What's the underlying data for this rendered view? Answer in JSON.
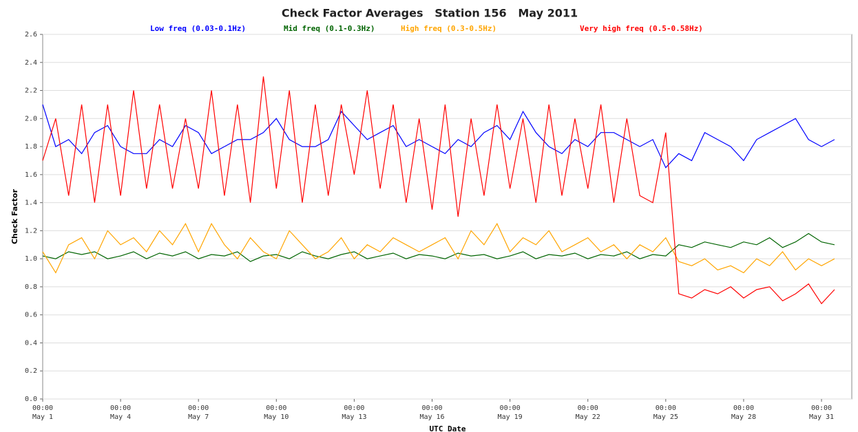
{
  "chart_data": {
    "type": "line",
    "title": "Check Factor Averages   Station 156   May 2011",
    "xlabel": "UTC Date",
    "ylabel": "Check Factor",
    "x": [
      "May 1 00:00",
      "May 1 12:00",
      "May 2 00:00",
      "May 2 12:00",
      "May 3 00:00",
      "May 3 12:00",
      "May 4 00:00",
      "May 4 12:00",
      "May 5 00:00",
      "May 5 12:00",
      "May 6 00:00",
      "May 6 12:00",
      "May 7 00:00",
      "May 7 12:00",
      "May 8 00:00",
      "May 8 12:00",
      "May 9 00:00",
      "May 9 12:00",
      "May 10 00:00",
      "May 10 12:00",
      "May 11 00:00",
      "May 11 12:00",
      "May 12 00:00",
      "May 12 12:00",
      "May 13 00:00",
      "May 13 12:00",
      "May 14 00:00",
      "May 14 12:00",
      "May 15 00:00",
      "May 15 12:00",
      "May 16 00:00",
      "May 16 12:00",
      "May 17 00:00",
      "May 17 12:00",
      "May 18 00:00",
      "May 18 12:00",
      "May 19 00:00",
      "May 19 12:00",
      "May 20 00:00",
      "May 20 12:00",
      "May 21 00:00",
      "May 21 12:00",
      "May 22 00:00",
      "May 22 12:00",
      "May 23 00:00",
      "May 23 12:00",
      "May 24 00:00",
      "May 24 12:00",
      "May 25 00:00",
      "May 25 12:00",
      "May 26 00:00",
      "May 26 12:00",
      "May 27 00:00",
      "May 27 12:00",
      "May 28 00:00",
      "May 28 12:00",
      "May 29 00:00",
      "May 29 12:00",
      "May 30 00:00",
      "May 30 12:00",
      "May 31 00:00",
      "May 31 12:00"
    ],
    "series": [
      {
        "name": "Low freq (0.03-0.1Hz)",
        "color": "#0000ff",
        "values": [
          2.1,
          1.8,
          1.85,
          1.75,
          1.9,
          1.95,
          1.8,
          1.75,
          1.75,
          1.85,
          1.8,
          1.95,
          1.9,
          1.75,
          1.8,
          1.85,
          1.85,
          1.9,
          2.0,
          1.85,
          1.8,
          1.8,
          1.85,
          2.05,
          1.95,
          1.85,
          1.9,
          1.95,
          1.8,
          1.85,
          1.8,
          1.75,
          1.85,
          1.8,
          1.9,
          1.95,
          1.85,
          2.05,
          1.9,
          1.8,
          1.75,
          1.85,
          1.8,
          1.9,
          1.9,
          1.85,
          1.8,
          1.85,
          1.65,
          1.75,
          1.7,
          1.9,
          1.85,
          1.8,
          1.7,
          1.85,
          1.9,
          1.95,
          2.0,
          1.85,
          1.8,
          1.85
        ]
      },
      {
        "name": "Mid freq (0.1-0.3Hz)",
        "color": "#006400",
        "values": [
          1.02,
          1.0,
          1.05,
          1.03,
          1.05,
          1.0,
          1.02,
          1.05,
          1.0,
          1.04,
          1.02,
          1.05,
          1.0,
          1.03,
          1.02,
          1.05,
          0.98,
          1.02,
          1.03,
          1.0,
          1.05,
          1.02,
          1.0,
          1.03,
          1.05,
          1.0,
          1.02,
          1.04,
          1.0,
          1.03,
          1.02,
          1.0,
          1.04,
          1.02,
          1.03,
          1.0,
          1.02,
          1.05,
          1.0,
          1.03,
          1.02,
          1.04,
          1.0,
          1.03,
          1.02,
          1.05,
          1.0,
          1.03,
          1.02,
          1.1,
          1.08,
          1.12,
          1.1,
          1.08,
          1.12,
          1.1,
          1.15,
          1.08,
          1.12,
          1.18,
          1.12,
          1.1
        ]
      },
      {
        "name": "High freq (0.3-0.5Hz)",
        "color": "#ffa500",
        "values": [
          1.05,
          0.9,
          1.1,
          1.15,
          1.0,
          1.2,
          1.1,
          1.15,
          1.05,
          1.2,
          1.1,
          1.25,
          1.05,
          1.25,
          1.1,
          1.0,
          1.15,
          1.05,
          1.0,
          1.2,
          1.1,
          1.0,
          1.05,
          1.15,
          1.0,
          1.1,
          1.05,
          1.15,
          1.1,
          1.05,
          1.1,
          1.15,
          1.0,
          1.2,
          1.1,
          1.25,
          1.05,
          1.15,
          1.1,
          1.2,
          1.05,
          1.1,
          1.15,
          1.05,
          1.1,
          1.0,
          1.1,
          1.05,
          1.15,
          0.98,
          0.95,
          1.0,
          0.92,
          0.95,
          0.9,
          1.0,
          0.95,
          1.05,
          0.92,
          1.0,
          0.95,
          1.0
        ]
      },
      {
        "name": "Very high freq (0.5-0.58Hz)",
        "color": "#ff0000",
        "values": [
          1.7,
          2.0,
          1.45,
          2.1,
          1.4,
          2.1,
          1.45,
          2.2,
          1.5,
          2.1,
          1.5,
          2.0,
          1.5,
          2.2,
          1.45,
          2.1,
          1.4,
          2.3,
          1.5,
          2.2,
          1.4,
          2.1,
          1.45,
          2.1,
          1.6,
          2.2,
          1.5,
          2.1,
          1.4,
          2.0,
          1.35,
          2.1,
          1.3,
          2.0,
          1.45,
          2.1,
          1.5,
          2.0,
          1.4,
          2.1,
          1.45,
          2.0,
          1.5,
          2.1,
          1.4,
          2.0,
          1.45,
          1.4,
          1.9,
          0.75,
          0.72,
          0.78,
          0.75,
          0.8,
          0.72,
          0.78,
          0.8,
          0.7,
          0.75,
          0.82,
          0.68,
          0.78
        ]
      }
    ],
    "xlim": [
      "May 1 00:00",
      "Jun 1 04:00"
    ],
    "xticks": [
      {
        "value": "May 1 00:00",
        "label": [
          "00:00",
          "May 1"
        ]
      },
      {
        "value": "May 4 00:00",
        "label": [
          "00:00",
          "May 4"
        ]
      },
      {
        "value": "May 7 00:00",
        "label": [
          "00:00",
          "May 7"
        ]
      },
      {
        "value": "May 10 00:00",
        "label": [
          "00:00",
          "May 10"
        ]
      },
      {
        "value": "May 13 00:00",
        "label": [
          "00:00",
          "May 13"
        ]
      },
      {
        "value": "May 16 00:00",
        "label": [
          "00:00",
          "May 16"
        ]
      },
      {
        "value": "May 19 00:00",
        "label": [
          "00:00",
          "May 19"
        ]
      },
      {
        "value": "May 22 00:00",
        "label": [
          "00:00",
          "May 22"
        ]
      },
      {
        "value": "May 25 00:00",
        "label": [
          "00:00",
          "May 25"
        ]
      },
      {
        "value": "May 28 00:00",
        "label": [
          "00:00",
          "May 28"
        ]
      },
      {
        "value": "May 31 00:00",
        "label": [
          "00:00",
          "May 31"
        ]
      }
    ],
    "ylim": [
      0,
      2.6
    ],
    "yticks": [
      {
        "value": 0,
        "label": "0.0"
      },
      0.2,
      0.4,
      0.6,
      0.8,
      {
        "value": 1,
        "label": "1.0"
      },
      1.2,
      1.4,
      1.6,
      1.8,
      {
        "value": 2,
        "label": "2.0"
      },
      2.2,
      2.4,
      2.6
    ],
    "grid": true
  }
}
